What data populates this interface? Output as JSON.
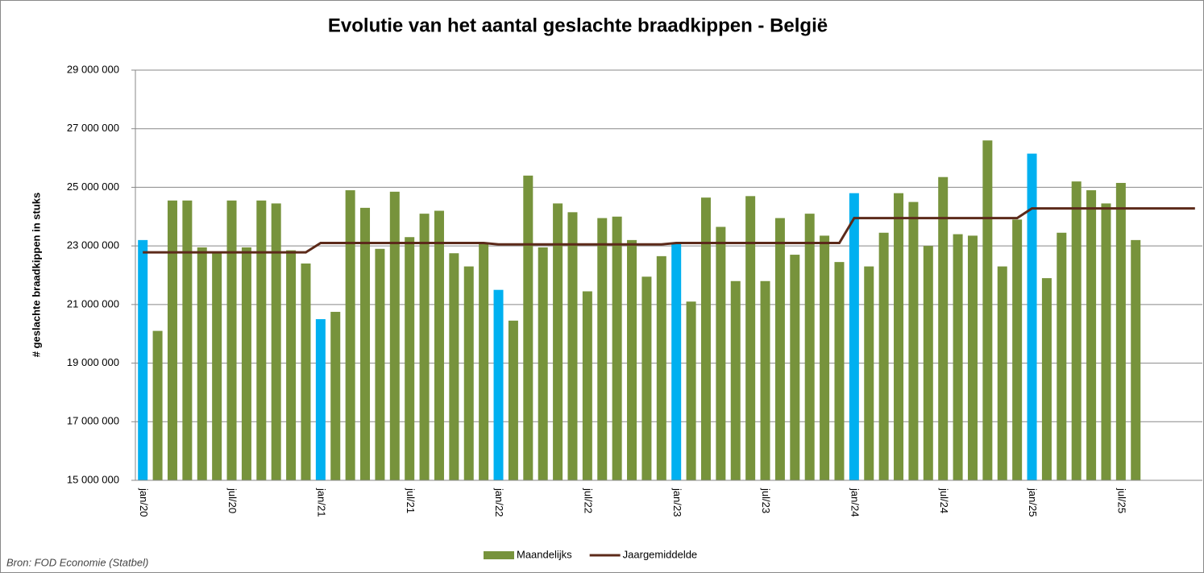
{
  "chart_data": {
    "type": "bar",
    "title": "Evolutie van het aantal geslachte braadkippen - België",
    "y_label": "# geslachte  braadkippen  in stuks",
    "source": "Bron: FOD Economie (Statbel)",
    "legend": "bottom",
    "grid": true,
    "ylim": [
      15000000,
      29000000
    ],
    "yticks": [
      {
        "value": 15000000,
        "label": "15 000 000"
      },
      {
        "value": 17000000,
        "label": "17 000 000"
      },
      {
        "value": 19000000,
        "label": "19 000 000"
      },
      {
        "value": 21000000,
        "label": "21 000 000"
      },
      {
        "value": 23000000,
        "label": "23 000 000"
      },
      {
        "value": 25000000,
        "label": "25 000 000"
      },
      {
        "value": 27000000,
        "label": "27 000 000"
      },
      {
        "value": 29000000,
        "label": "29 000 000"
      }
    ],
    "categories": [
      "jan/20",
      null,
      null,
      null,
      null,
      null,
      "jul/20",
      null,
      null,
      null,
      null,
      null,
      "jan/21",
      null,
      null,
      null,
      null,
      null,
      "jul/21",
      null,
      null,
      null,
      null,
      null,
      "jan/22",
      null,
      null,
      null,
      null,
      null,
      "jul/22",
      null,
      null,
      null,
      null,
      null,
      "jan/23",
      null,
      null,
      null,
      null,
      null,
      "jul/23",
      null,
      null,
      null,
      null,
      null,
      "jan/24",
      null,
      null,
      null,
      null,
      null,
      "jul/24",
      null,
      null,
      null,
      null,
      null,
      "jan/25",
      null,
      null,
      null,
      null,
      null,
      "jul/25",
      null,
      null,
      null,
      null,
      null
    ],
    "series": [
      {
        "name": "Maandelijks",
        "type": "bar",
        "color": "#77933c",
        "colors": [
          "#00b0f0",
          "#77933c",
          "#77933c",
          "#77933c",
          "#77933c",
          "#77933c",
          "#77933c",
          "#77933c",
          "#77933c",
          "#77933c",
          "#77933c",
          "#77933c",
          "#00b0f0",
          "#77933c",
          "#77933c",
          "#77933c",
          "#77933c",
          "#77933c",
          "#77933c",
          "#77933c",
          "#77933c",
          "#77933c",
          "#77933c",
          "#77933c",
          "#00b0f0",
          "#77933c",
          "#77933c",
          "#77933c",
          "#77933c",
          "#77933c",
          "#77933c",
          "#77933c",
          "#77933c",
          "#77933c",
          "#77933c",
          "#77933c",
          "#00b0f0",
          "#77933c",
          "#77933c",
          "#77933c",
          "#77933c",
          "#77933c",
          "#77933c",
          "#77933c",
          "#77933c",
          "#77933c",
          "#77933c",
          "#77933c",
          "#00b0f0",
          "#77933c",
          "#77933c",
          "#77933c",
          "#77933c",
          "#77933c",
          "#77933c",
          "#77933c",
          "#77933c",
          "#77933c",
          "#77933c",
          "#77933c",
          "#00b0f0",
          "#77933c",
          "#77933c",
          "#77933c",
          "#77933c",
          "#77933c",
          "#77933c",
          "#77933c",
          null,
          null,
          null,
          null
        ],
        "values": [
          23200000,
          20100000,
          24550000,
          24550000,
          22950000,
          22800000,
          24550000,
          22950000,
          24550000,
          24450000,
          22850000,
          22400000,
          20500000,
          20750000,
          24900000,
          24300000,
          22900000,
          24850000,
          23300000,
          24100000,
          24200000,
          22750000,
          22300000,
          23100000,
          21500000,
          20450000,
          25400000,
          22950000,
          24450000,
          24150000,
          21450000,
          23950000,
          24000000,
          23200000,
          21950000,
          22650000,
          23100000,
          21100000,
          24650000,
          23650000,
          21800000,
          24700000,
          21800000,
          23950000,
          22700000,
          24100000,
          23350000,
          22450000,
          24800000,
          22300000,
          23450000,
          24800000,
          24500000,
          23000000,
          25350000,
          23400000,
          23350000,
          26600000,
          22300000,
          23900000,
          26150000,
          21900000,
          23450000,
          25200000,
          24900000,
          24450000,
          25150000,
          23200000,
          null,
          null,
          null,
          null
        ]
      },
      {
        "name": "Jaargemiddelde",
        "type": "line",
        "color": "#5c2a1a",
        "values": [
          22780000,
          22780000,
          22780000,
          22780000,
          22780000,
          22780000,
          22780000,
          22780000,
          22780000,
          22780000,
          22780000,
          22780000,
          23100000,
          23100000,
          23100000,
          23100000,
          23100000,
          23100000,
          23100000,
          23100000,
          23100000,
          23100000,
          23100000,
          23100000,
          23050000,
          23050000,
          23050000,
          23050000,
          23050000,
          23050000,
          23050000,
          23050000,
          23050000,
          23050000,
          23050000,
          23050000,
          23100000,
          23100000,
          23100000,
          23100000,
          23100000,
          23100000,
          23100000,
          23100000,
          23100000,
          23100000,
          23100000,
          23100000,
          23950000,
          23950000,
          23950000,
          23950000,
          23950000,
          23950000,
          23950000,
          23950000,
          23950000,
          23950000,
          23950000,
          23950000,
          24280000,
          24280000,
          24280000,
          24280000,
          24280000,
          24280000,
          24280000,
          24280000,
          24280000,
          24280000,
          24280000,
          24280000
        ]
      }
    ]
  }
}
